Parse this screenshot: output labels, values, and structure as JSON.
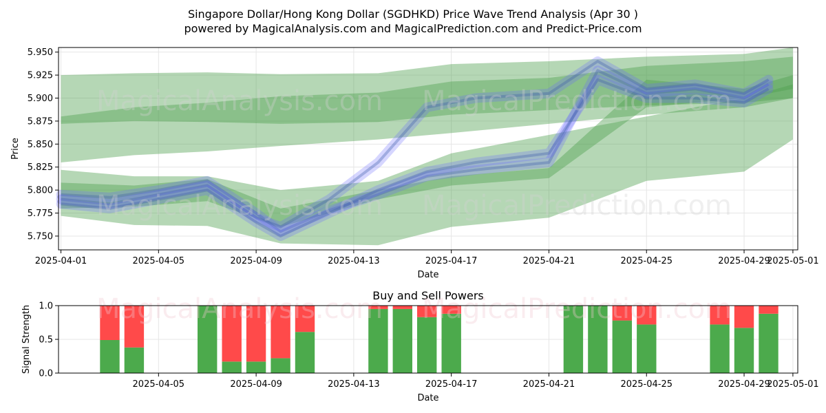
{
  "figure": {
    "title_line1": "Singapore Dollar/Hong Kong Dollar (SGDHKD) Price Wave Trend Analysis (Apr 30 )",
    "title_line2": "powered by MagicalAnalysis.com and MagicalPrediction.com and Predict-Price.com",
    "watermark_left": "MagicalAnalysis.com",
    "watermark_right": "MagicalPrediction.com"
  },
  "chart_data": [
    {
      "type": "area",
      "title": "",
      "xlabel": "Date",
      "ylabel": "Price",
      "xlim": [
        "2025-03-31",
        "2025-05-01"
      ],
      "ylim": [
        5.735,
        5.955
      ],
      "x_ticks": [
        "2025-04-01",
        "2025-04-05",
        "2025-04-09",
        "2025-04-13",
        "2025-04-17",
        "2025-04-21",
        "2025-04-25",
        "2025-04-29",
        "2025-05-01"
      ],
      "y_ticks": [
        5.75,
        5.775,
        5.8,
        5.825,
        5.85,
        5.875,
        5.9,
        5.925,
        5.95
      ],
      "y_tick_labels": [
        "5.750",
        "5.775",
        "5.800",
        "5.825",
        "5.850",
        "5.875",
        "5.900",
        "5.925",
        "5.950"
      ],
      "grid": true,
      "series": [
        {
          "color": "#4f9f4f",
          "kind": "green-bands",
          "x": [
            "2025-04-01",
            "2025-04-04",
            "2025-04-07",
            "2025-04-10",
            "2025-04-14",
            "2025-04-17",
            "2025-04-21",
            "2025-04-25",
            "2025-04-29",
            "2025-05-01"
          ],
          "bands": [
            {
              "low": [
                5.83,
                5.838,
                5.842,
                5.848,
                5.855,
                5.862,
                5.872,
                5.882,
                5.89,
                5.9
              ],
              "high": [
                5.925,
                5.927,
                5.928,
                5.926,
                5.927,
                5.937,
                5.94,
                5.945,
                5.948,
                5.955
              ]
            },
            {
              "low": [
                5.872,
                5.875,
                5.874,
                5.872,
                5.874,
                5.882,
                5.887,
                5.892,
                5.895,
                5.9
              ],
              "high": [
                5.88,
                5.89,
                5.895,
                5.902,
                5.906,
                5.918,
                5.922,
                5.935,
                5.94,
                5.945
              ]
            },
            {
              "low": [
                5.772,
                5.762,
                5.761,
                5.742,
                5.74,
                5.76,
                5.77,
                5.81,
                5.82,
                5.855
              ],
              "high": [
                5.822,
                5.815,
                5.815,
                5.8,
                5.81,
                5.84,
                5.86,
                5.88,
                5.9,
                5.915
              ]
            },
            {
              "low": [
                5.78,
                5.782,
                5.788,
                5.76,
                5.79,
                5.805,
                5.813,
                5.89,
                5.9,
                5.91
              ],
              "high": [
                5.808,
                5.805,
                5.812,
                5.78,
                5.8,
                5.815,
                5.824,
                5.92,
                5.91,
                5.925
              ]
            }
          ]
        },
        {
          "color": "#6b6bff",
          "kind": "blue-waves",
          "x": [
            "2025-04-01",
            "2025-04-03",
            "2025-04-05",
            "2025-04-07",
            "2025-04-09",
            "2025-04-10",
            "2025-04-12",
            "2025-04-14",
            "2025-04-16",
            "2025-04-18",
            "2025-04-21",
            "2025-04-23",
            "2025-04-25",
            "2025-04-27",
            "2025-04-29",
            "2025-04-30"
          ],
          "waves": [
            [
              5.795,
              5.792,
              5.8,
              5.81,
              5.775,
              5.755,
              5.778,
              5.795,
              5.815,
              5.822,
              5.83,
              5.93,
              5.905,
              5.91,
              5.9,
              5.915
            ],
            [
              5.79,
              5.785,
              5.795,
              5.805,
              5.77,
              5.76,
              5.79,
              5.83,
              5.89,
              5.9,
              5.905,
              5.94,
              5.91,
              5.915,
              5.905,
              5.92
            ],
            [
              5.785,
              5.78,
              5.79,
              5.8,
              5.765,
              5.75,
              5.775,
              5.8,
              5.82,
              5.83,
              5.84,
              5.92,
              5.9,
              5.9,
              5.895,
              5.91
            ]
          ]
        }
      ]
    },
    {
      "type": "bar",
      "title": "Buy and Sell Powers",
      "xlabel": "Date",
      "ylabel": "Signal Strength",
      "xlim": [
        "2025-03-31",
        "2025-05-01"
      ],
      "ylim": [
        0,
        1.0
      ],
      "x_ticks": [
        "2025-04-05",
        "2025-04-09",
        "2025-04-13",
        "2025-04-17",
        "2025-04-21",
        "2025-04-25",
        "2025-04-29",
        "2025-05-01"
      ],
      "y_ticks": [
        0.0,
        0.5,
        1.0
      ],
      "y_tick_labels": [
        "0.0",
        "0.5",
        "1.0"
      ],
      "buy_color": "#4caa4c",
      "sell_color": "#ff4a4a",
      "categories": [
        "2025-04-03",
        "2025-04-04",
        "2025-04-07",
        "2025-04-08",
        "2025-04-09",
        "2025-04-10",
        "2025-04-11",
        "2025-04-14",
        "2025-04-15",
        "2025-04-16",
        "2025-04-17",
        "2025-04-22",
        "2025-04-23",
        "2025-04-24",
        "2025-04-25",
        "2025-04-28",
        "2025-04-29",
        "2025-04-30"
      ],
      "series": [
        {
          "values": [
            0.49,
            0.38,
            1.0,
            0.17,
            0.17,
            0.22,
            0.61,
            0.95,
            0.95,
            0.83,
            0.88,
            1.0,
            1.0,
            0.78,
            0.72,
            0.72,
            0.67,
            0.88
          ]
        },
        {
          "values": [
            0.51,
            0.62,
            0.0,
            0.83,
            0.83,
            0.78,
            0.39,
            0.05,
            0.05,
            0.17,
            0.12,
            0.0,
            0.0,
            0.22,
            0.28,
            0.28,
            0.33,
            0.12
          ]
        }
      ]
    }
  ]
}
